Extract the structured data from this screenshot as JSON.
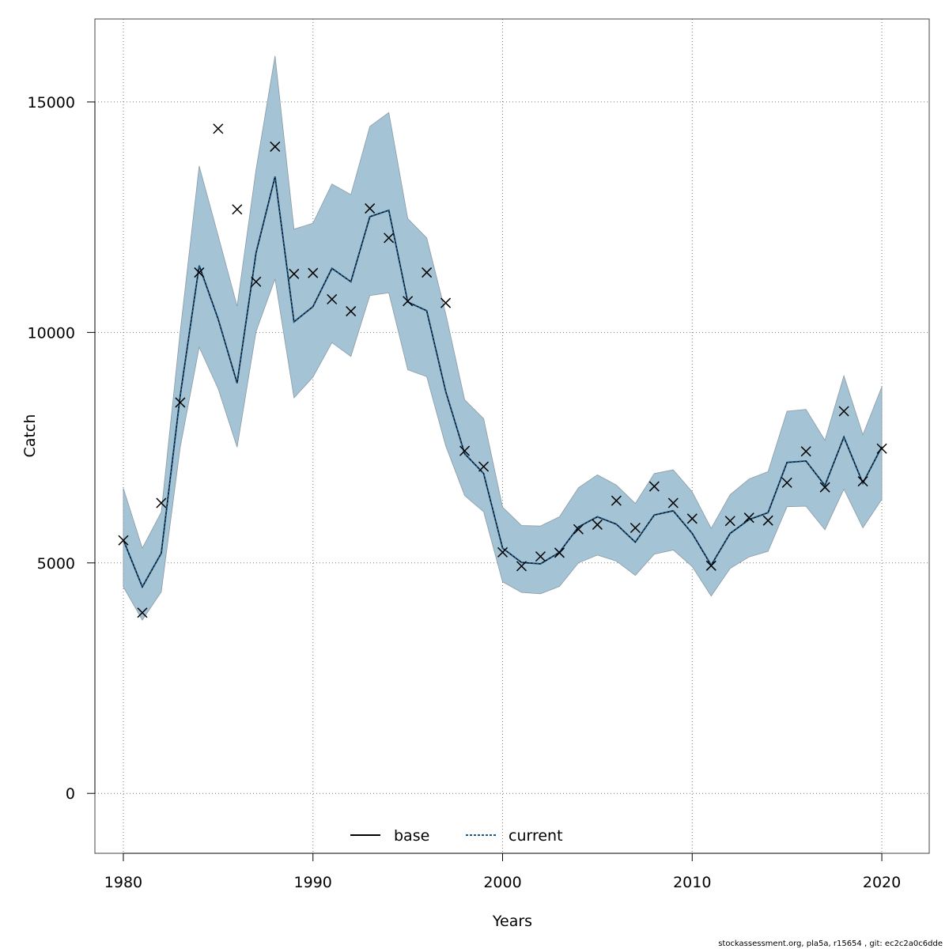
{
  "chart_data": {
    "type": "line",
    "title": "",
    "xlabel": "Years",
    "ylabel": "Catch",
    "xlim": [
      1978.5,
      2022.5
    ],
    "ylim": [
      -1300,
      16800
    ],
    "x_ticks": [
      1980,
      1990,
      2000,
      2010,
      2020
    ],
    "y_ticks": [
      0,
      5000,
      10000,
      15000
    ],
    "grid": true,
    "legend_position": "bottom-center",
    "x": [
      1980,
      1981,
      1982,
      1983,
      1984,
      1985,
      1986,
      1987,
      1988,
      1989,
      1990,
      1991,
      1992,
      1993,
      1994,
      1995,
      1996,
      1997,
      1998,
      1999,
      2000,
      2001,
      2002,
      2003,
      2004,
      2005,
      2006,
      2007,
      2008,
      2009,
      2010,
      2011,
      2012,
      2013,
      2014,
      2015,
      2016,
      2017,
      2018,
      2019,
      2020
    ],
    "band": {
      "color": "#a4c3d5",
      "upper": [
        6620,
        5320,
        6100,
        10020,
        13610,
        12100,
        10570,
        13540,
        16000,
        12240,
        12370,
        13220,
        12990,
        14470,
        14770,
        12470,
        12050,
        10410,
        8540,
        8130,
        6210,
        5810,
        5800,
        6000,
        6630,
        6910,
        6690,
        6290,
        6940,
        7020,
        6540,
        5750,
        6480,
        6820,
        6980,
        8290,
        8330,
        7660,
        9060,
        7780,
        8820
      ],
      "lower": [
        4480,
        3760,
        4370,
        7510,
        9680,
        8780,
        7510,
        10020,
        11160,
        8580,
        9030,
        9780,
        9480,
        10800,
        10860,
        9190,
        9040,
        7540,
        6460,
        6110,
        4590,
        4360,
        4330,
        4490,
        5000,
        5170,
        5040,
        4730,
        5190,
        5280,
        4920,
        4280,
        4880,
        5130,
        5250,
        6220,
        6230,
        5720,
        6600,
        5760,
        6380
      ]
    },
    "series": [
      {
        "name": "base",
        "color": "#000000",
        "values": [
          5500,
          4480,
          5210,
          8630,
          11450,
          10290,
          8900,
          11730,
          13380,
          10230,
          10560,
          11390,
          11100,
          12510,
          12650,
          10660,
          10470,
          8720,
          7370,
          6940,
          5320,
          5010,
          4980,
          5230,
          5780,
          6000,
          5840,
          5450,
          6040,
          6130,
          5640,
          4950,
          5640,
          5940,
          6090,
          7180,
          7210,
          6680,
          7730,
          6730,
          7520
        ]
      },
      {
        "name": "current",
        "color": "#1a5a8a",
        "values": [
          5500,
          4480,
          5210,
          8630,
          11450,
          10290,
          8900,
          11730,
          13380,
          10230,
          10560,
          11390,
          11100,
          12510,
          12650,
          10660,
          10470,
          8720,
          7370,
          6940,
          5320,
          5010,
          4980,
          5230,
          5780,
          6000,
          5840,
          5450,
          6040,
          6130,
          5640,
          4950,
          5640,
          5940,
          6090,
          7180,
          7210,
          6680,
          7730,
          6730,
          7520
        ]
      }
    ],
    "observations": {
      "name": "observed",
      "marker": "x",
      "values": [
        5490,
        3920,
        6300,
        8480,
        11300,
        14420,
        12670,
        11100,
        14030,
        11270,
        11290,
        10720,
        10460,
        12690,
        12050,
        10680,
        11300,
        10640,
        7430,
        7090,
        5230,
        4930,
        5140,
        5220,
        5730,
        5830,
        6350,
        5760,
        6660,
        6300,
        5960,
        4940,
        5910,
        5980,
        5920,
        6740,
        7420,
        6640,
        8290,
        6770,
        7480
      ]
    }
  },
  "legend": {
    "base_label": "base",
    "current_label": "current"
  },
  "footer": {
    "text": "stockassessment.org, pla5a, r15654 , git: ec2c2a0c6dde"
  }
}
